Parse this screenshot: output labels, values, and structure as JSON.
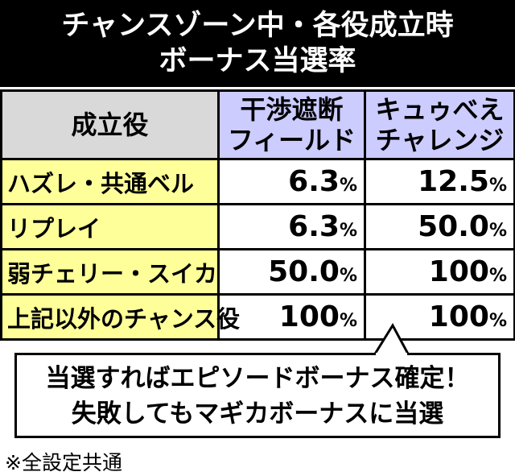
{
  "title": {
    "lines": [
      "チャンスゾーン中・各役成立時",
      "ボーナス当選率"
    ]
  },
  "table": {
    "header": [
      [
        "成立役"
      ],
      [
        "干渉遮断",
        "フィールド"
      ],
      [
        "キュゥべえ",
        "チャレンジ"
      ]
    ],
    "rows": [
      {
        "label": "ハズレ・共通ベル",
        "cells": [
          {
            "number": "6.3",
            "unit": "%"
          },
          {
            "number": "12.5",
            "unit": "%"
          }
        ]
      },
      {
        "label": "リプレイ",
        "cells": [
          {
            "number": "6.3",
            "unit": "%"
          },
          {
            "number": "50.0",
            "unit": "%"
          }
        ]
      },
      {
        "label": "弱チェリー・スイカ",
        "cells": [
          {
            "number": "50.0",
            "unit": "%"
          },
          {
            "number": "100",
            "unit": "%"
          }
        ]
      },
      {
        "label": "上記以外のチャンス役",
        "cells": [
          {
            "number": "100",
            "unit": "%"
          },
          {
            "number": "100",
            "unit": "%"
          }
        ]
      }
    ]
  },
  "callout": {
    "lines": [
      "当選すればエピソードボーナス確定！",
      "失敗してもマギカボーナスに当選"
    ]
  },
  "footnote": "※全設定共通"
}
